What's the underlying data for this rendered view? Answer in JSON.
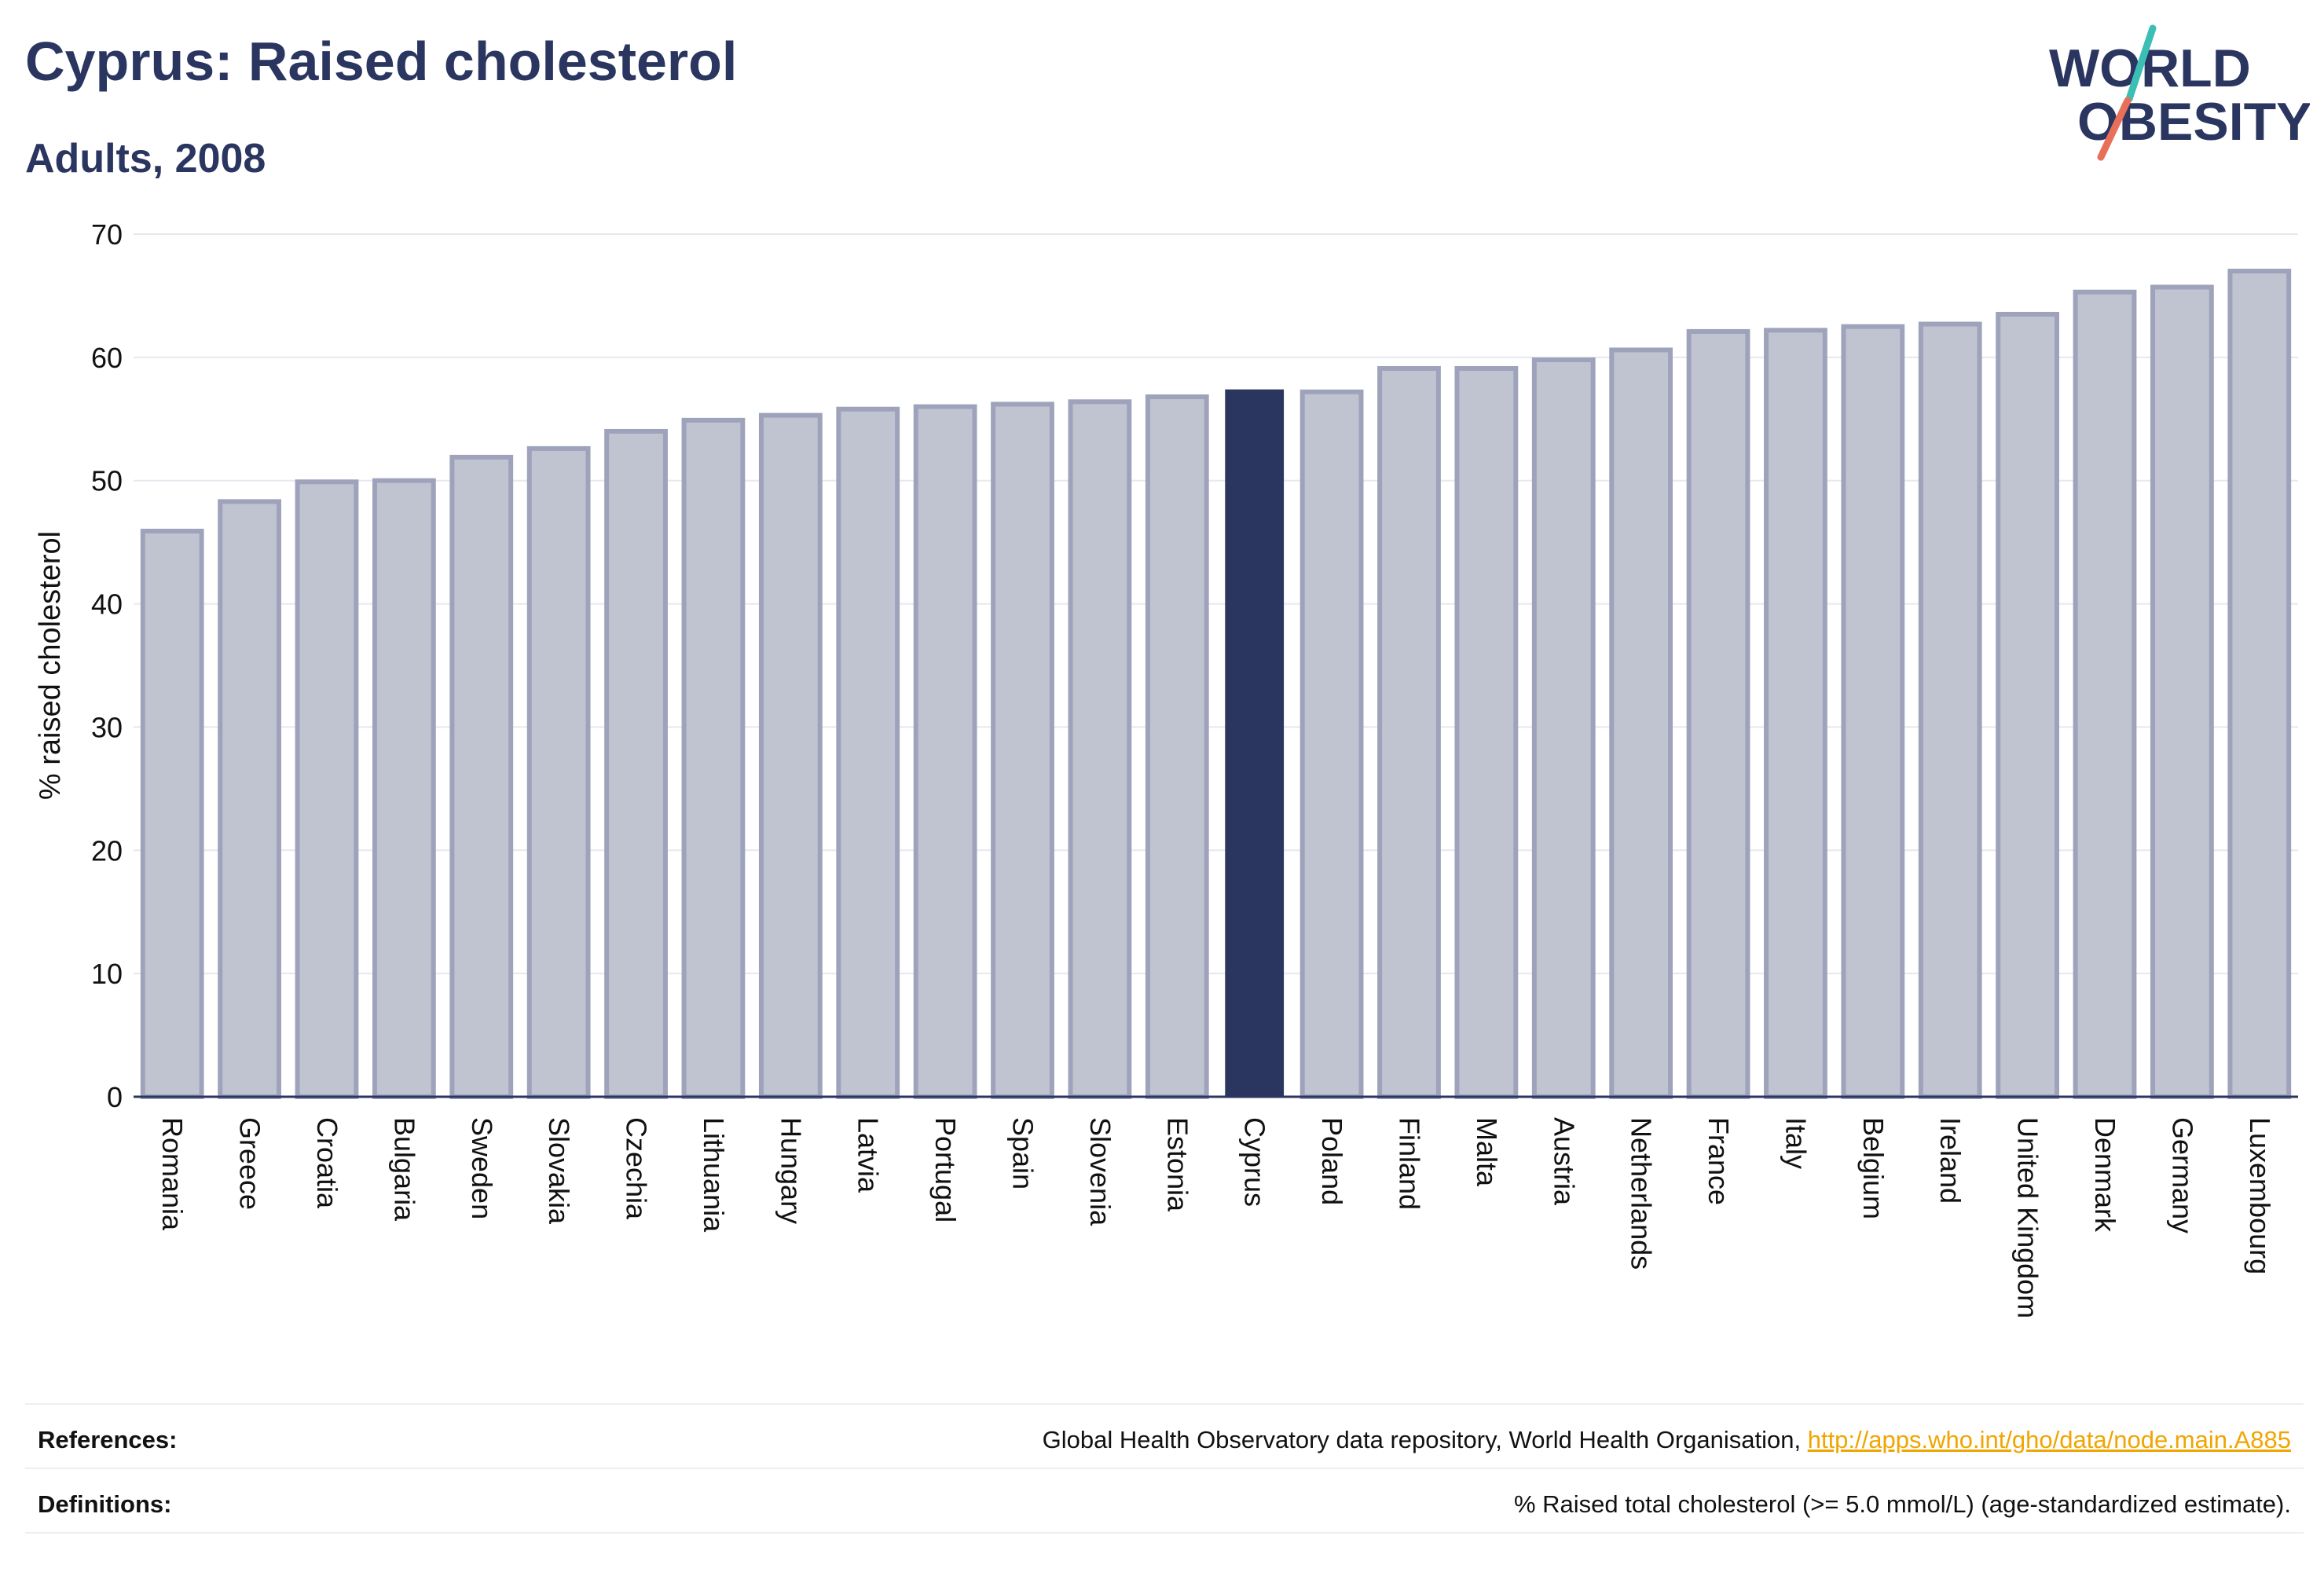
{
  "header": {
    "title": "Cyprus: Raised cholesterol",
    "subtitle": "Adults, 2008"
  },
  "logo": {
    "line1": "WORLD",
    "line2": "OBESITY"
  },
  "colors": {
    "highlight_bar": "#2a3560",
    "other_bar_fill": "#c0c3d0",
    "other_bar_stroke": "#9ea3bb",
    "gridline": "#e6e8ee",
    "link": "#f0a500",
    "logo_slash_top": "#3bbfb5",
    "logo_slash_bottom": "#e8705a"
  },
  "chart_data": {
    "type": "bar",
    "ylabel": "% raised cholesterol",
    "ylim": [
      0,
      70
    ],
    "yticks": [
      0,
      10,
      20,
      30,
      40,
      50,
      60,
      70
    ],
    "grid": true,
    "highlight": "Cyprus",
    "categories": [
      "Romania",
      "Greece",
      "Croatia",
      "Bulgaria",
      "Sweden",
      "Slovakia",
      "Czechia",
      "Lithuania",
      "Hungary",
      "Latvia",
      "Portugal",
      "Spain",
      "Slovenia",
      "Estonia",
      "Cyprus",
      "Poland",
      "Finland",
      "Malta",
      "Austria",
      "Netherlands",
      "France",
      "Italy",
      "Belgium",
      "Ireland",
      "United Kingdom",
      "Denmark",
      "Germany",
      "Luxembourg"
    ],
    "values": [
      45.9,
      48.3,
      49.9,
      50.0,
      51.9,
      52.6,
      54.0,
      54.9,
      55.3,
      55.8,
      56.0,
      56.2,
      56.4,
      56.8,
      57.4,
      57.2,
      59.1,
      59.1,
      59.8,
      60.6,
      62.1,
      62.2,
      62.5,
      62.7,
      63.5,
      65.3,
      65.7,
      67.0
    ]
  },
  "footer": {
    "references_label": "References:",
    "references_text": "Global Health Observatory data repository, World Health Organisation, ",
    "references_link": "http://apps.who.int/gho/data/node.main.A885",
    "definitions_label": "Definitions:",
    "definitions_text": "% Raised total cholesterol (>= 5.0 mmol/L) (age-standardized estimate)."
  }
}
